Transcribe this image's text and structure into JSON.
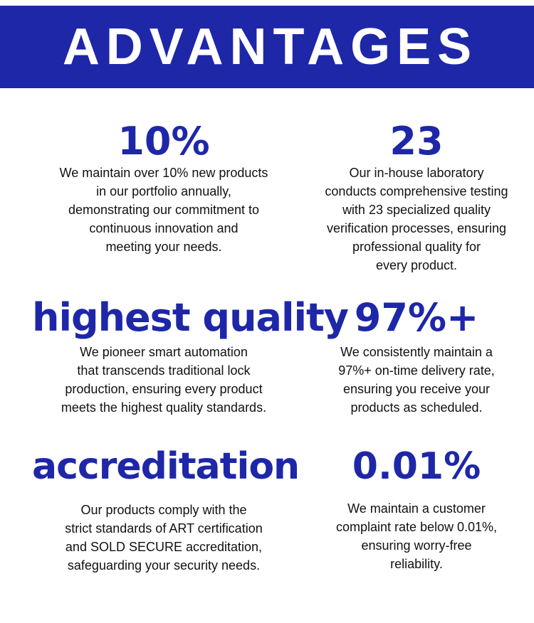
{
  "title": "ADVANTAGES",
  "colors": {
    "accent": "#1e27a8",
    "text": "#111111",
    "background": "#ffffff"
  },
  "items": [
    {
      "heading": "10%",
      "lines": [
        "We maintain over 10% new products",
        "in our portfolio annually,",
        "demonstrating our commitment to",
        "continuous innovation and",
        "meeting your needs."
      ]
    },
    {
      "heading": "23",
      "lines": [
        "Our in-house laboratory",
        "conducts comprehensive testing",
        "with 23 specialized quality",
        "verification processes, ensuring",
        "professional quality for",
        "every product."
      ]
    },
    {
      "heading": "highest quality",
      "lines": [
        "We pioneer smart automation",
        "that transcends traditional lock",
        "production, ensuring every product",
        "meets the highest quality standards."
      ]
    },
    {
      "heading": "97%+",
      "lines": [
        "We consistently maintain a",
        "97%+ on-time delivery rate,",
        "ensuring you receive your",
        "products as scheduled."
      ]
    },
    {
      "heading": "accreditation",
      "lines": [
        "Our products comply with the",
        "strict standards of ART certification",
        "and SOLD SECURE accreditation,",
        "safeguarding your security needs."
      ]
    },
    {
      "heading": "0.01%",
      "lines": [
        "We maintain a customer",
        "complaint rate below 0.01%,",
        "ensuring worry-free",
        "reliability."
      ]
    }
  ]
}
